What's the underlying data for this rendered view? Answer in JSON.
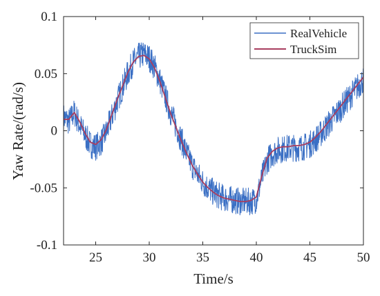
{
  "chart_data": {
    "type": "line",
    "xlabel": "Time/s",
    "ylabel": "Yaw Rate/(rad/s)",
    "xlim": [
      22,
      50
    ],
    "ylim": [
      -0.1,
      0.1
    ],
    "xticks": [
      25,
      30,
      35,
      40,
      45,
      50
    ],
    "yticks": [
      -0.1,
      -0.05,
      0,
      0.05,
      0.1
    ],
    "xtick_labels": [
      "25",
      "30",
      "35",
      "40",
      "45",
      "50"
    ],
    "ytick_labels": [
      "-0.1",
      "-0.05",
      "0",
      "0.05",
      "0.1"
    ],
    "grid": false,
    "legend_position": "top-right",
    "series": [
      {
        "name": "RealVehicle",
        "color": "#3a6fc4",
        "noisy": true,
        "noise_amplitude": 0.012,
        "x": [
          22,
          22.5,
          23,
          23.5,
          24,
          24.5,
          25,
          25.5,
          26,
          26.5,
          27,
          27.5,
          28,
          28.5,
          29,
          29.5,
          30,
          30.5,
          31,
          31.5,
          32,
          32.5,
          33,
          33.5,
          34,
          34.5,
          35,
          35.5,
          36,
          36.5,
          37,
          37.5,
          38,
          38.5,
          39,
          39.5,
          40,
          40.5,
          41,
          41.5,
          42,
          42.5,
          43,
          43.5,
          44,
          44.5,
          45,
          45.5,
          46,
          46.5,
          47,
          47.5,
          48,
          48.5,
          49,
          49.5,
          50
        ],
        "y": [
          0.012,
          0.008,
          0.016,
          0.005,
          -0.004,
          -0.012,
          -0.014,
          -0.01,
          -0.001,
          0.012,
          0.026,
          0.038,
          0.05,
          0.06,
          0.065,
          0.067,
          0.064,
          0.056,
          0.044,
          0.03,
          0.016,
          0.004,
          -0.008,
          -0.02,
          -0.03,
          -0.038,
          -0.045,
          -0.05,
          -0.054,
          -0.057,
          -0.059,
          -0.06,
          -0.061,
          -0.062,
          -0.062,
          -0.062,
          -0.06,
          -0.042,
          -0.026,
          -0.02,
          -0.017,
          -0.016,
          -0.015,
          -0.015,
          -0.015,
          -0.014,
          -0.012,
          -0.008,
          -0.003,
          0.003,
          0.009,
          0.015,
          0.021,
          0.027,
          0.033,
          0.039,
          0.045
        ]
      },
      {
        "name": "TruckSim",
        "color": "#a83d5e",
        "noisy": false,
        "x": [
          22,
          22.5,
          23,
          23.5,
          24,
          24.5,
          25,
          25.5,
          26,
          26.5,
          27,
          27.5,
          28,
          28.5,
          29,
          29.5,
          30,
          30.5,
          31,
          31.5,
          32,
          32.5,
          33,
          33.5,
          34,
          34.5,
          35,
          35.5,
          36,
          36.5,
          37,
          37.5,
          38,
          38.5,
          39,
          39.5,
          40,
          40.5,
          41,
          41.5,
          42,
          42.5,
          43,
          43.5,
          44,
          44.5,
          45,
          45.5,
          46,
          46.5,
          47,
          47.5,
          48,
          48.5,
          49,
          49.5,
          50
        ],
        "y": [
          0.01,
          0.01,
          0.016,
          0.008,
          -0.002,
          -0.01,
          -0.012,
          -0.008,
          0.001,
          0.014,
          0.027,
          0.039,
          0.051,
          0.06,
          0.065,
          0.066,
          0.063,
          0.055,
          0.043,
          0.029,
          0.015,
          0.003,
          -0.009,
          -0.02,
          -0.03,
          -0.038,
          -0.045,
          -0.05,
          -0.054,
          -0.057,
          -0.059,
          -0.06,
          -0.061,
          -0.062,
          -0.062,
          -0.061,
          -0.058,
          -0.04,
          -0.024,
          -0.018,
          -0.015,
          -0.014,
          -0.014,
          -0.013,
          -0.013,
          -0.012,
          -0.01,
          -0.006,
          -0.001,
          0.005,
          0.011,
          0.017,
          0.023,
          0.029,
          0.035,
          0.041,
          0.047
        ]
      }
    ]
  }
}
